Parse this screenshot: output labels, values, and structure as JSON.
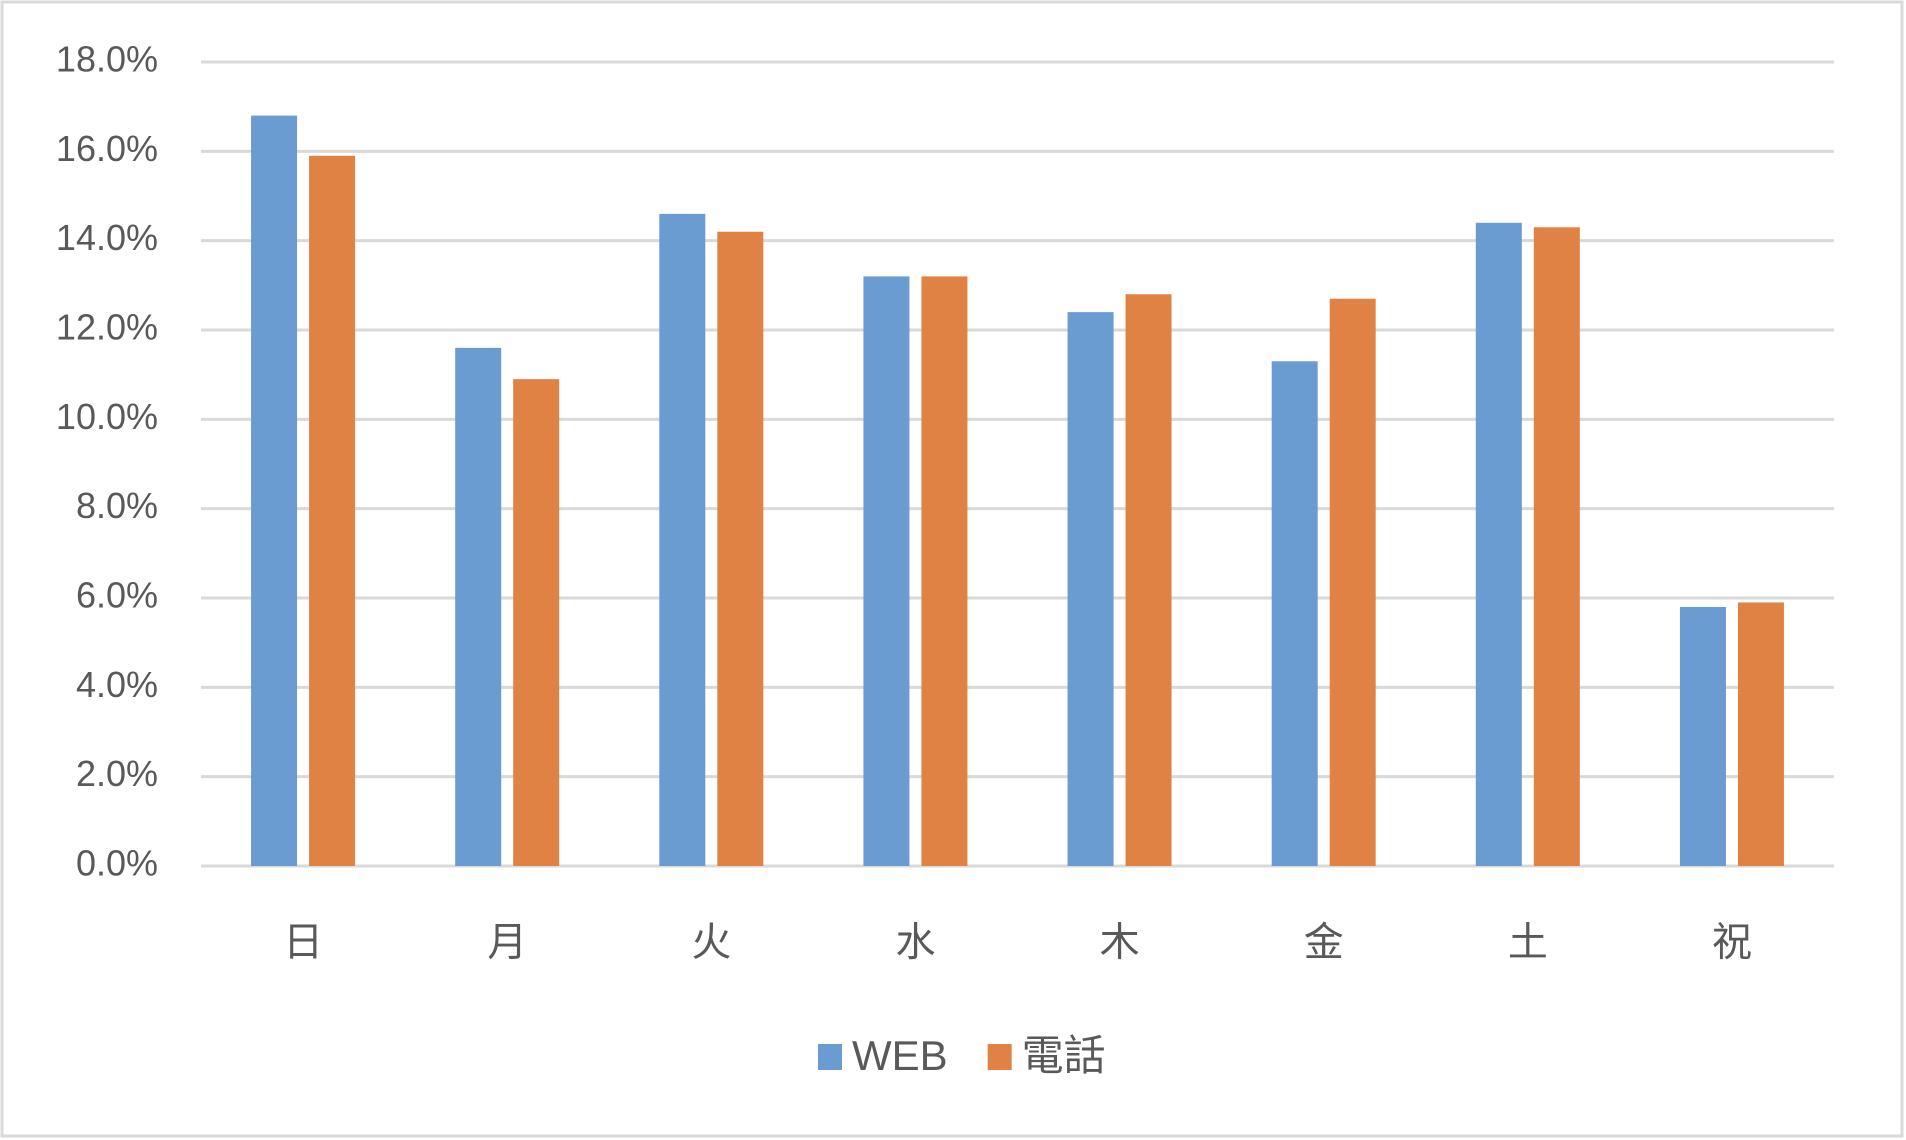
{
  "chart_data": {
    "type": "bar",
    "categories": [
      "日",
      "月",
      "火",
      "水",
      "木",
      "金",
      "土",
      "祝"
    ],
    "series": [
      {
        "name": "WEB",
        "color": "#6a9bd1",
        "values": [
          16.8,
          11.6,
          14.6,
          13.2,
          12.4,
          11.3,
          14.4,
          5.8
        ]
      },
      {
        "name": "電話",
        "color": "#e08244",
        "values": [
          15.9,
          10.9,
          14.2,
          13.2,
          12.8,
          12.7,
          14.3,
          5.9
        ]
      }
    ],
    "ylim": [
      0,
      18
    ],
    "yticks": [
      {
        "value": 0,
        "label": "0.0%"
      },
      {
        "value": 2,
        "label": "2.0%"
      },
      {
        "value": 4,
        "label": "4.0%"
      },
      {
        "value": 6,
        "label": "6.0%"
      },
      {
        "value": 8,
        "label": "8.0%"
      },
      {
        "value": 10,
        "label": "10.0%"
      },
      {
        "value": 12,
        "label": "12.0%"
      },
      {
        "value": 14,
        "label": "14.0%"
      },
      {
        "value": 16,
        "label": "16.0%"
      },
      {
        "value": 18,
        "label": "18.0%"
      }
    ],
    "grid": true,
    "legend": "bottom"
  }
}
